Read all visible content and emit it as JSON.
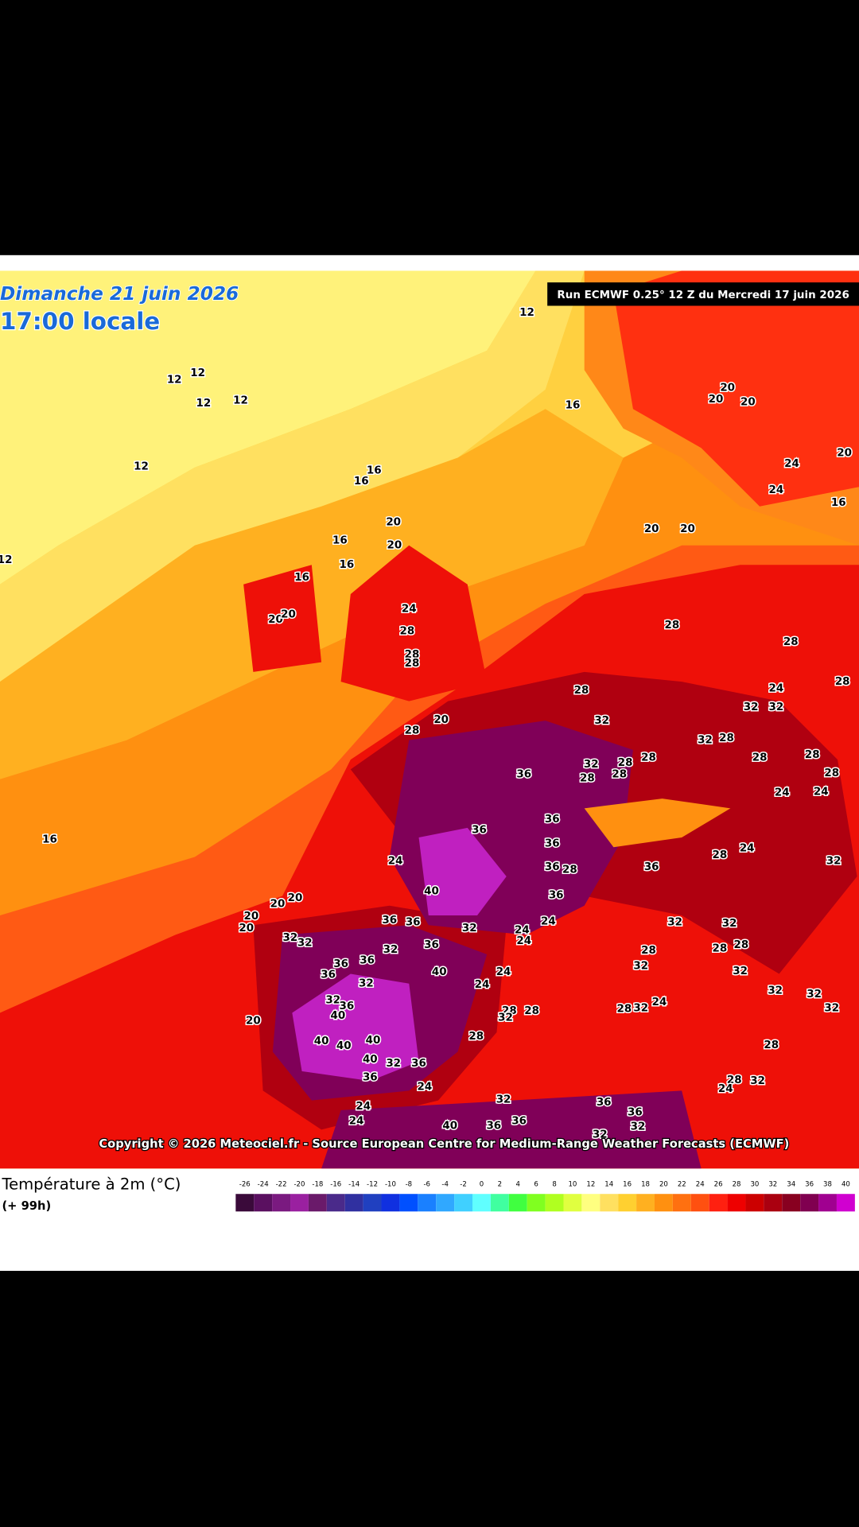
{
  "header": {
    "date": "Dimanche 21 juin 2026",
    "time": "17:00 locale",
    "run": "Run ECMWF 0.25° 12 Z du Mercredi 17 juin 2026"
  },
  "copyright": "Copyright © 2026 Meteociel.fr - Source European Centre for Medium-Range Weather Forecasts (ECMWF)",
  "legend": {
    "title": "Température à 2m (°C)",
    "lead": "(+ 99h)",
    "values": [
      -26,
      -24,
      -22,
      -20,
      -18,
      -16,
      -14,
      -12,
      -10,
      -8,
      -6,
      -4,
      -2,
      0,
      2,
      4,
      6,
      8,
      10,
      12,
      14,
      16,
      18,
      20,
      22,
      24,
      26,
      28,
      30,
      32,
      34,
      36,
      38,
      40
    ],
    "colors": [
      "#3a0a3a",
      "#5a1060",
      "#7a1a80",
      "#9a20a0",
      "#6a1a6a",
      "#4a2a8a",
      "#3030a0",
      "#2040c0",
      "#1030e0",
      "#0050ff",
      "#1a80ff",
      "#30a8ff",
      "#40d0ff",
      "#60ffff",
      "#40ffa0",
      "#40ff40",
      "#80ff20",
      "#b0ff20",
      "#e0ff40",
      "#ffff80",
      "#ffe060",
      "#ffd030",
      "#ffb020",
      "#ff9010",
      "#ff7010",
      "#ff5010",
      "#ff2010",
      "#ee0000",
      "#cc0000",
      "#aa0010",
      "#880020",
      "#800050",
      "#a00090",
      "#d000d0"
    ]
  },
  "map_labels": [
    "12",
    "12",
    "12",
    "12",
    "12",
    "12",
    "12",
    "16",
    "16",
    "16",
    "16",
    "16",
    "16",
    "20",
    "20",
    "20",
    "20",
    "24",
    "28",
    "28",
    "28",
    "20",
    "28",
    "28",
    "32",
    "36",
    "32",
    "28",
    "28",
    "28",
    "28",
    "28",
    "28",
    "28",
    "24",
    "32",
    "32",
    "32",
    "28",
    "28",
    "28",
    "28",
    "24",
    "24",
    "36",
    "36",
    "36",
    "36",
    "28",
    "36",
    "24",
    "40",
    "36",
    "28",
    "24",
    "32",
    "20",
    "20",
    "20",
    "20",
    "36",
    "36",
    "32",
    "24",
    "24",
    "24",
    "32",
    "32",
    "36",
    "36",
    "32",
    "36",
    "40",
    "24",
    "24",
    "36",
    "32",
    "32",
    "36",
    "40",
    "28",
    "28",
    "32",
    "28",
    "32",
    "24",
    "28",
    "32",
    "40",
    "40",
    "40",
    "40",
    "32",
    "36",
    "36",
    "24",
    "28",
    "20",
    "24",
    "24",
    "32",
    "32",
    "32",
    "32",
    "32",
    "32",
    "28",
    "32",
    "24",
    "28",
    "36",
    "36",
    "36",
    "36",
    "40",
    "32",
    "32",
    "20",
    "20",
    "20",
    "24",
    "24",
    "20",
    "16",
    "16",
    "20",
    "20",
    "28",
    "28",
    "32"
  ]
}
